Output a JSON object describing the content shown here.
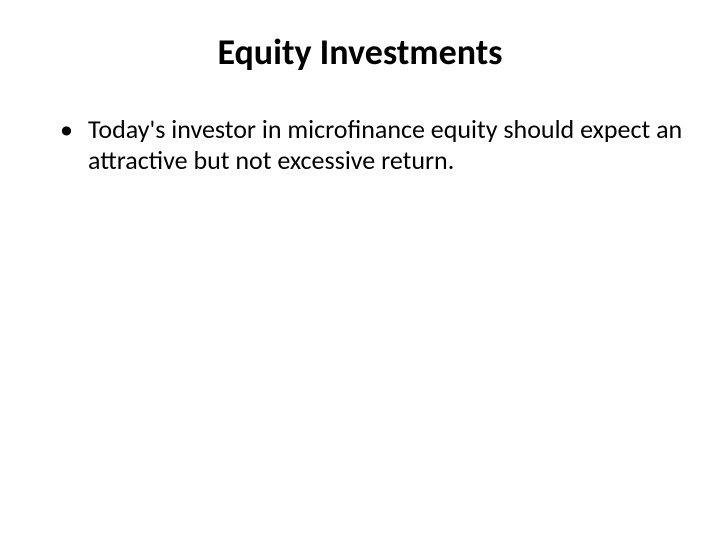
{
  "slide": {
    "title": "Equity Investments",
    "title_fontsize": 36,
    "title_color": "#000000",
    "bullets": [
      {
        "text": "Today's investor in microfinance equity should expect an attractive but not excessive return."
      }
    ],
    "bullet_fontsize": 26,
    "bullet_color": "#000000",
    "background_color": "#ffffff"
  }
}
